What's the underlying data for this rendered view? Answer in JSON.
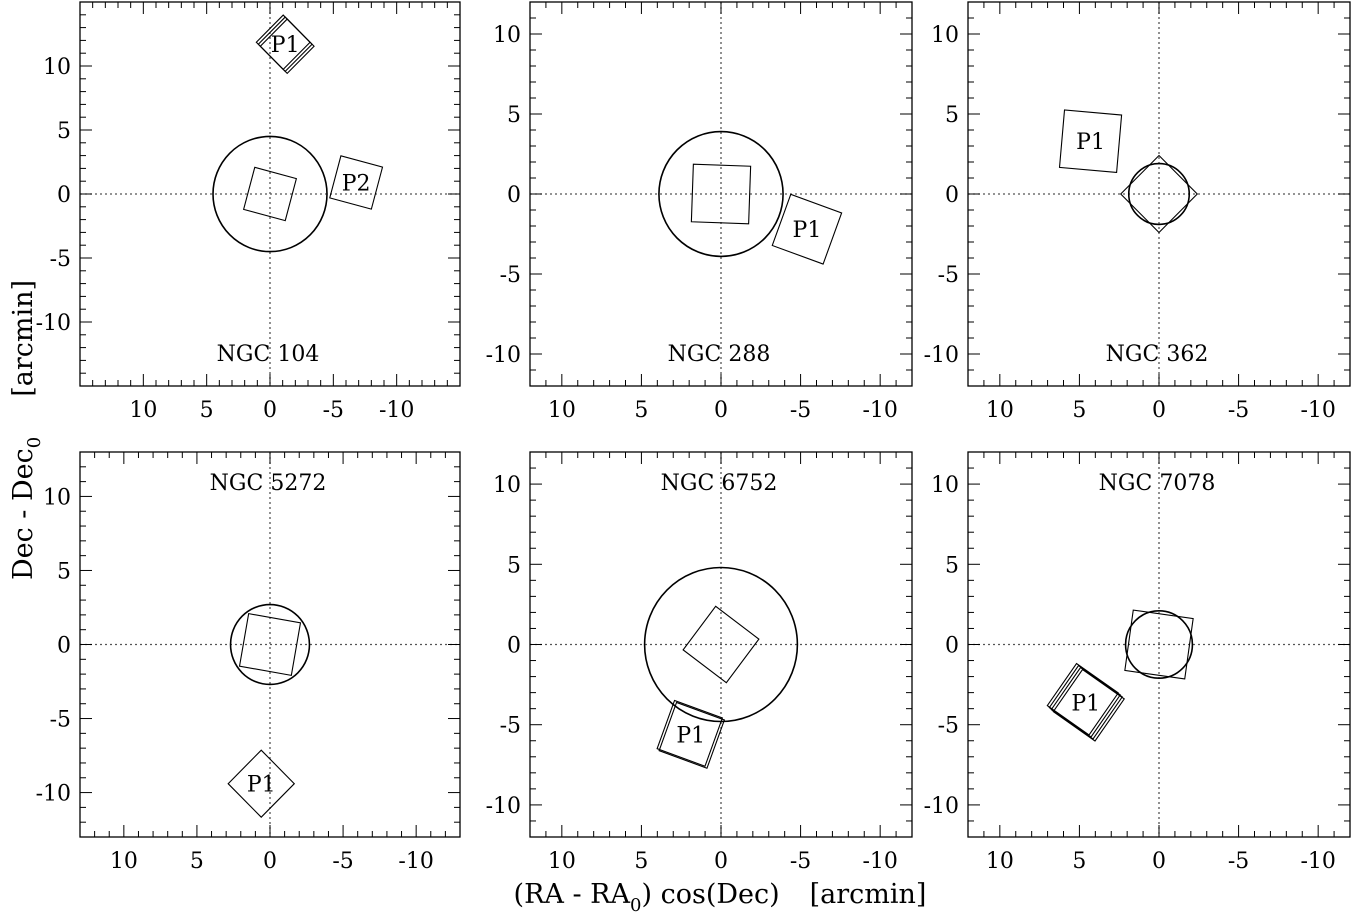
{
  "figure": {
    "xlabel_main": "(RA - RA",
    "xlabel_sub": "0",
    "xlabel_tail": ") cos(Dec)",
    "xlabel_unit": "[arcmin]",
    "ylabel_main": "Dec - Dec",
    "ylabel_sub": "0",
    "ylabel_unit": "[arcmin]"
  },
  "chart_data": [
    {
      "type": "scatter",
      "title": "NGC 104",
      "xlim": [
        15,
        -15
      ],
      "ylim": [
        -15,
        15
      ],
      "xticks": [
        10,
        5,
        0,
        -5,
        -10
      ],
      "yticks": [
        10,
        5,
        0,
        -5,
        -10
      ],
      "grid": false,
      "circle": {
        "cx": 0,
        "cy": 0,
        "r": 4.5
      },
      "central_square": {
        "cx": 0,
        "cy": 0,
        "half": 1.7,
        "angle": 15
      },
      "pointings": [
        {
          "label": "P1",
          "cx": -1.2,
          "cy": 11.7,
          "half": 1.5,
          "angle": 45,
          "copies": 3
        },
        {
          "label": "P2",
          "cx": -6.8,
          "cy": 0.9,
          "half": 1.7,
          "angle": 15,
          "copies": 1
        }
      ]
    },
    {
      "type": "scatter",
      "title": "NGC 288",
      "xlim": [
        12,
        -12
      ],
      "ylim": [
        -12,
        12
      ],
      "xticks": [
        10,
        5,
        0,
        -5,
        -10
      ],
      "yticks": [
        10,
        5,
        0,
        -5,
        -10
      ],
      "grid": false,
      "circle": {
        "cx": 0,
        "cy": 0,
        "r": 3.9
      },
      "central_square": {
        "cx": 0,
        "cy": 0,
        "half": 1.8,
        "angle": 2
      },
      "pointings": [
        {
          "label": "P1",
          "cx": -5.4,
          "cy": -2.2,
          "half": 1.7,
          "angle": 20,
          "copies": 1
        }
      ]
    },
    {
      "type": "scatter",
      "title": "NGC 362",
      "xlim": [
        12,
        -12
      ],
      "ylim": [
        -12,
        12
      ],
      "xticks": [
        10,
        5,
        0,
        -5,
        -10
      ],
      "yticks": [
        10,
        5,
        0,
        -5,
        -10
      ],
      "grid": false,
      "circle": {
        "cx": 0,
        "cy": 0,
        "r": 1.9
      },
      "central_square": {
        "cx": 0,
        "cy": 0,
        "half": 1.7,
        "angle": 45
      },
      "pointings": [
        {
          "label": "P1",
          "cx": 4.3,
          "cy": 3.3,
          "half": 1.8,
          "angle": 5,
          "copies": 1
        }
      ]
    },
    {
      "type": "scatter",
      "title": "NGC 5272",
      "xlim": [
        13,
        -13
      ],
      "ylim": [
        -13,
        13
      ],
      "xticks": [
        10,
        5,
        0,
        -5,
        -10
      ],
      "yticks": [
        10,
        5,
        0,
        -5,
        -10
      ],
      "grid": false,
      "circle": {
        "cx": 0,
        "cy": 0,
        "r": 2.7
      },
      "central_square": {
        "cx": 0,
        "cy": 0,
        "half": 1.8,
        "angle": 10
      },
      "pointings": [
        {
          "label": "P1",
          "cx": 0.6,
          "cy": -9.4,
          "half": 1.6,
          "angle": 45,
          "copies": 1
        }
      ]
    },
    {
      "type": "scatter",
      "title": "NGC 6752",
      "xlim": [
        12,
        -12
      ],
      "ylim": [
        -12,
        12
      ],
      "xticks": [
        10,
        5,
        0,
        -5,
        -10
      ],
      "yticks": [
        10,
        5,
        0,
        -5,
        -10
      ],
      "grid": false,
      "circle": {
        "cx": 0,
        "cy": 0,
        "r": 4.8
      },
      "central_square": {
        "cx": 0,
        "cy": 0,
        "half": 1.7,
        "angle": 37
      },
      "pointings": [
        {
          "label": "P1",
          "cx": 1.9,
          "cy": -5.6,
          "half": 1.6,
          "angle": 20,
          "copies": 2
        }
      ]
    },
    {
      "type": "scatter",
      "title": "NGC 7078",
      "xlim": [
        12,
        -12
      ],
      "ylim": [
        -12,
        12
      ],
      "xticks": [
        10,
        5,
        0,
        -5,
        -10
      ],
      "yticks": [
        10,
        5,
        0,
        -5,
        -10
      ],
      "grid": false,
      "circle": {
        "cx": 0,
        "cy": 0,
        "r": 2.1
      },
      "central_square": {
        "cx": 0,
        "cy": 0,
        "half": 1.9,
        "angle": 8
      },
      "pointings": [
        {
          "label": "P1",
          "cx": 4.6,
          "cy": -3.6,
          "half": 1.6,
          "angle": 35,
          "copies": 4
        }
      ]
    }
  ]
}
